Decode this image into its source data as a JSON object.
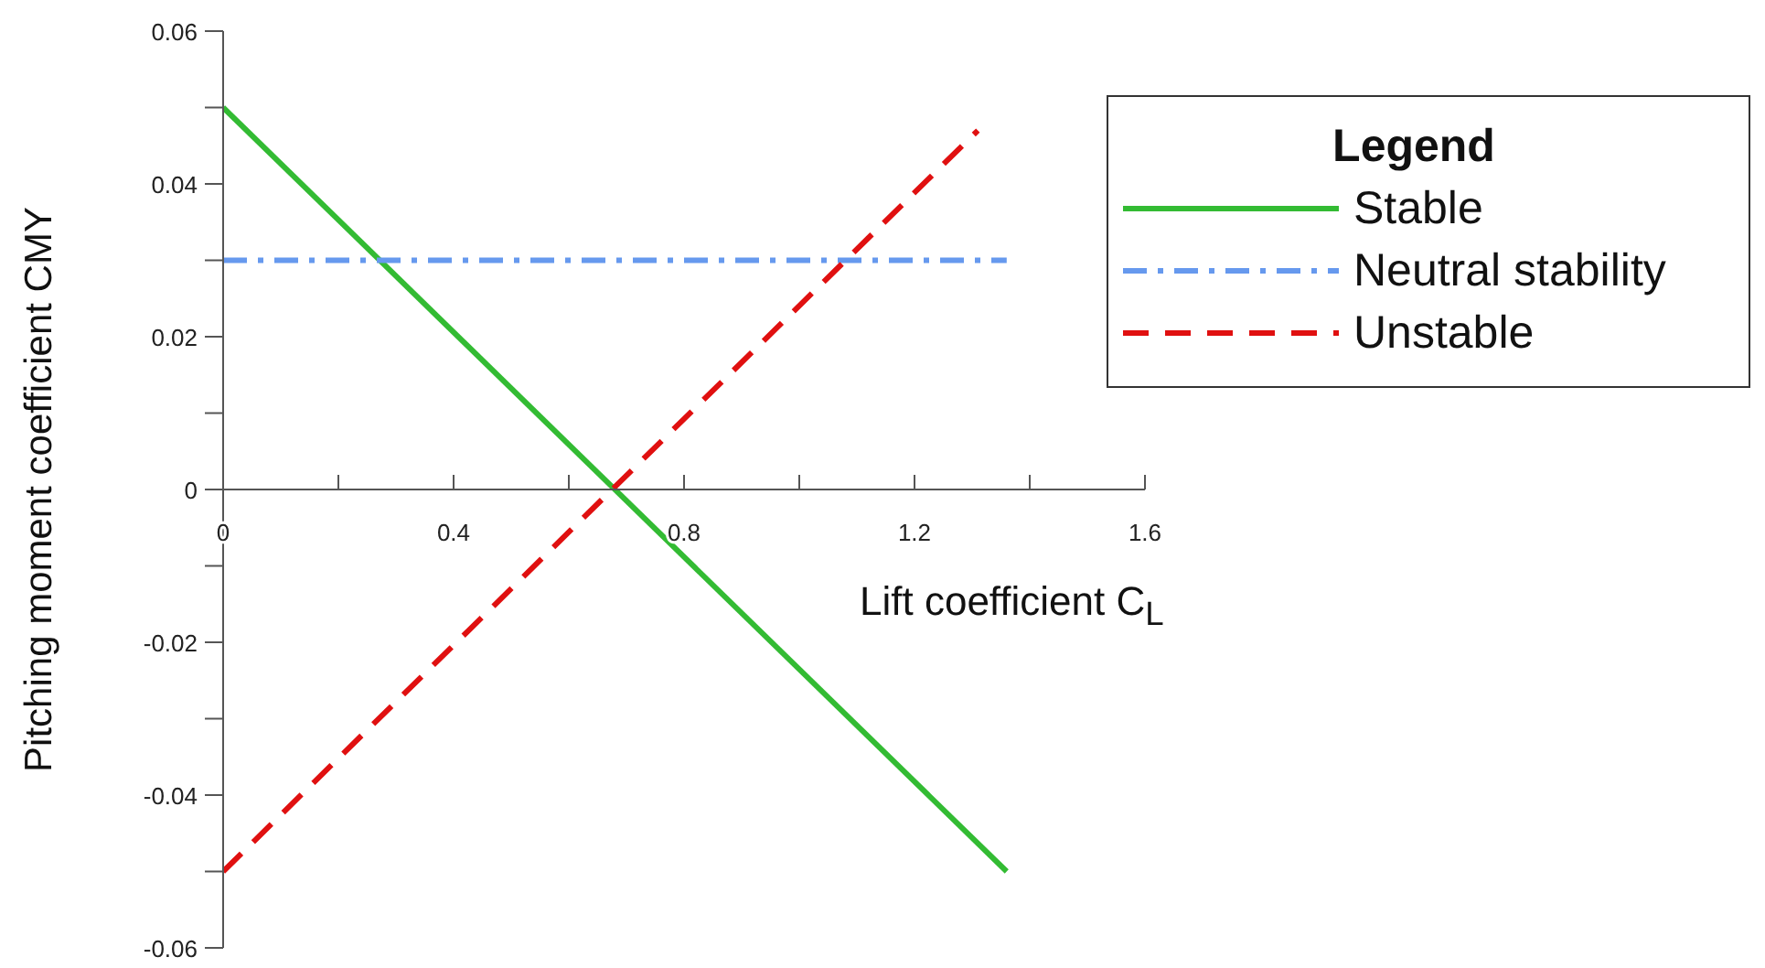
{
  "chart_data": {
    "type": "line",
    "xlabel": "Lift coefficient  C$_{L}$",
    "ylabel": "Pitching moment coefficient  CMY",
    "legend_title": "Legend",
    "legend": "right",
    "grid": false,
    "marker": "none",
    "xlim": [
      0,
      1.6
    ],
    "xticks": [
      0,
      {
        "value": 0.2,
        "label": null
      },
      0.4,
      {
        "value": 0.6,
        "label": null
      },
      0.8,
      {
        "value": 1.0,
        "label": null
      },
      1.2,
      {
        "value": 1.4,
        "label": null
      },
      1.6
    ],
    "ylim": [
      -0.06,
      0.06
    ],
    "yticks": [
      -0.06,
      {
        "value": -0.05,
        "label": null
      },
      -0.04,
      {
        "value": -0.03,
        "label": null
      },
      -0.02,
      {
        "value": -0.01,
        "label": null
      },
      0,
      {
        "value": 0.01,
        "label": null
      },
      0.02,
      {
        "value": 0.03,
        "label": null
      },
      0.04,
      {
        "value": 0.05,
        "label": null
      },
      0.06
    ],
    "series": [
      {
        "name": "Stable",
        "color": "#33bb33",
        "line_style": "solid",
        "x": [
          0,
          1.36
        ],
        "values": [
          0.05,
          -0.05
        ]
      },
      {
        "name": "Neutral stability",
        "color": "#6699ee",
        "line_style": "dashdot",
        "x": [
          0,
          1.36
        ],
        "values": [
          0.03,
          0.03
        ]
      },
      {
        "name": "Unstable",
        "color": "#e01010",
        "line_style": "dashed",
        "x": [
          0,
          1.31
        ],
        "values": [
          -0.05,
          0.047
        ]
      }
    ]
  }
}
